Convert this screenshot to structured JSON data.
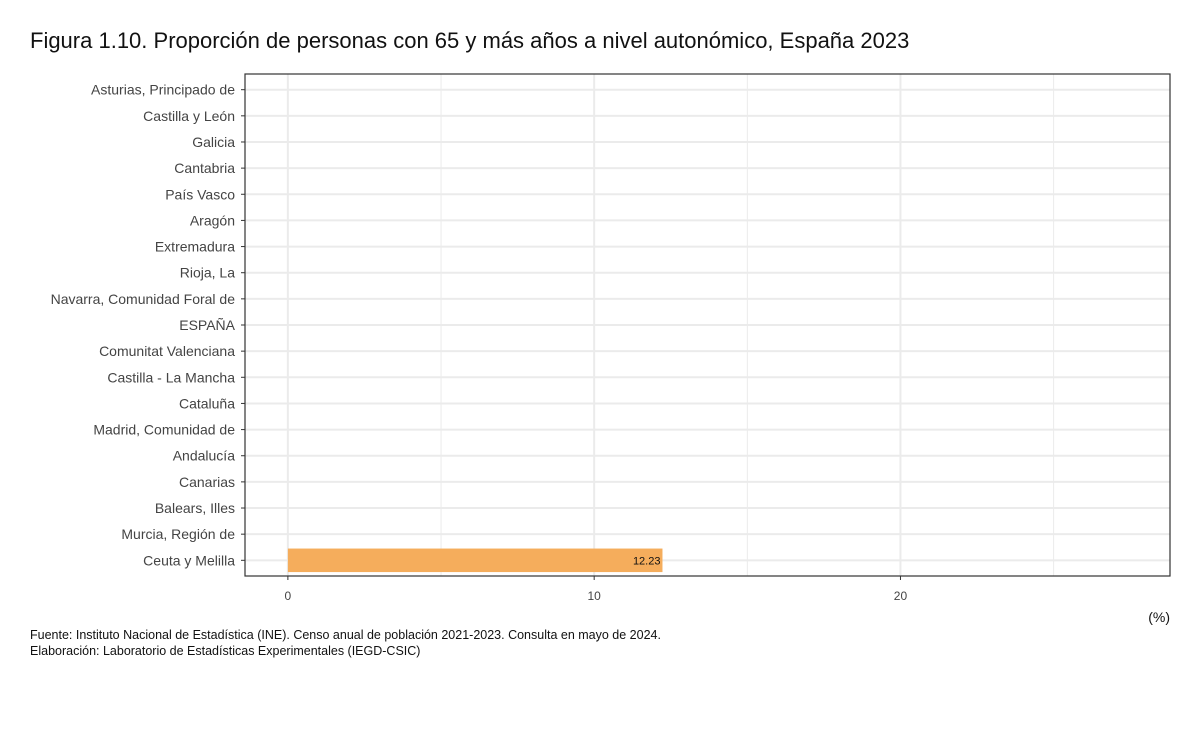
{
  "title": "Figura 1.10. Proporción de personas con 65 y más años a nivel autonómico, España 2023",
  "unit": "(%)",
  "footer": {
    "source": "Fuente: Instituto Nacional de Estadística (INE). Censo anual de población 2021-2023. Consulta en mayo de 2024.",
    "credit": "Elaboración: Laboratorio de Estadísticas Experimentales (IEGD-CSIC)"
  },
  "colors": {
    "bar": "#f5ad5c",
    "grid": "#ebebeb",
    "axis": "#333333"
  },
  "chart_data": {
    "type": "bar",
    "orientation": "horizontal",
    "categories": [
      "Asturias, Principado de",
      "Castilla y León",
      "Galicia",
      "Cantabria",
      "País Vasco",
      "Aragón",
      "Extremadura",
      "Rioja, La",
      "Navarra, Comunidad Foral de",
      "ESPAÑA",
      "Comunitat Valenciana",
      "Castilla - La Mancha",
      "Cataluña",
      "Madrid, Comunidad de",
      "Andalucía",
      "Canarias",
      "Balears, Illes",
      "Murcia, Región de",
      "Ceuta y Melilla"
    ],
    "values": [
      null,
      null,
      null,
      null,
      null,
      null,
      null,
      null,
      null,
      null,
      null,
      null,
      null,
      null,
      null,
      null,
      null,
      null,
      12.23
    ],
    "value_labels": [
      "",
      "",
      "",
      "",
      "",
      "",
      "",
      "",
      "",
      "",
      "",
      "",
      "",
      "",
      "",
      "",
      "",
      "",
      "12.23"
    ],
    "xlim": [
      -1.4,
      28.8
    ],
    "xticks": [
      0,
      10,
      20
    ],
    "xtick_labels": [
      "0",
      "10",
      "20"
    ],
    "grid": true,
    "legend": false
  }
}
